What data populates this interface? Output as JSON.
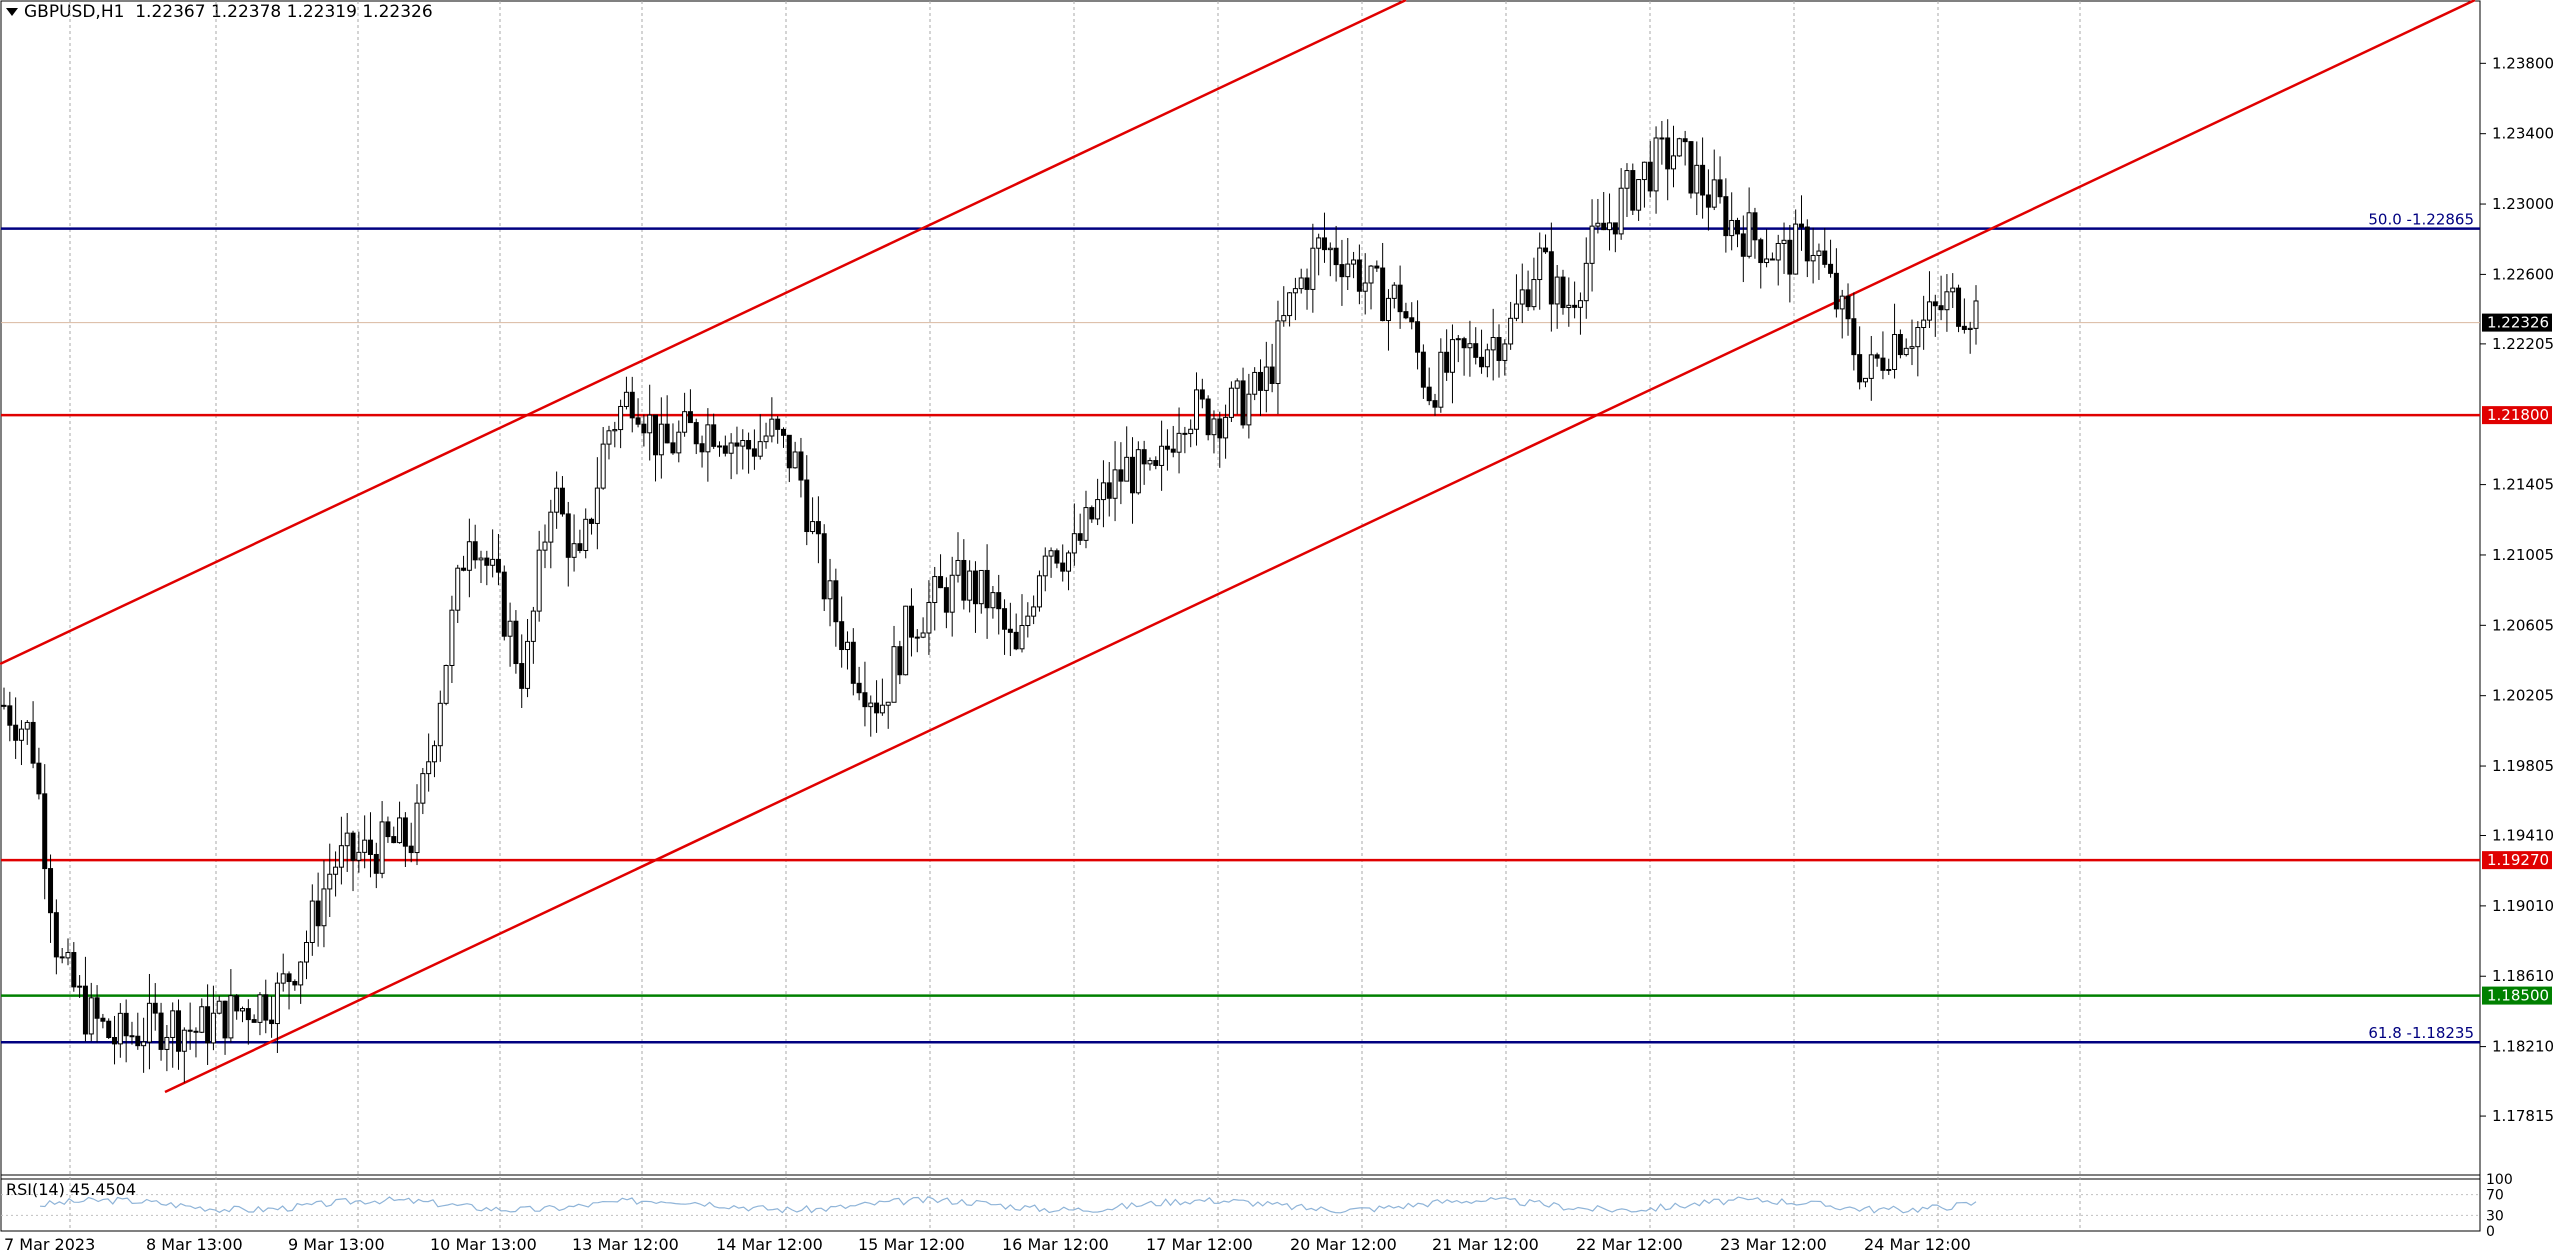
{
  "header": {
    "symbol": "GBPUSD,H1",
    "ohlc": "1.22367 1.22378 1.22319 1.22326"
  },
  "rsi": {
    "label": "RSI(14) 45.4504",
    "levels": [
      "100",
      "70",
      "30",
      "0"
    ]
  },
  "price_axis": {
    "ticks": [
      "1.23800",
      "1.23400",
      "1.23000",
      "1.22600",
      "1.22205",
      "1.21405",
      "1.21005",
      "1.20605",
      "1.20205",
      "1.19805",
      "1.19410",
      "1.19010",
      "1.18610",
      "1.18210",
      "1.17815"
    ],
    "tick_values": [
      1.238,
      1.234,
      1.23,
      1.226,
      1.22205,
      1.21405,
      1.21005,
      1.20605,
      1.20205,
      1.19805,
      1.1941,
      1.1901,
      1.1861,
      1.1821,
      1.17815
    ],
    "current_price": "1.22326",
    "current_value": 1.22326,
    "range": [
      1.1748,
      1.2416
    ]
  },
  "time_axis": {
    "labels": [
      "7 Mar 2023",
      "8 Mar 13:00",
      "9 Mar 13:00",
      "10 Mar 13:00",
      "13 Mar 12:00",
      "14 Mar 12:00",
      "15 Mar 12:00",
      "16 Mar 12:00",
      "17 Mar 12:00",
      "20 Mar 12:00",
      "21 Mar 12:00",
      "22 Mar 12:00",
      "23 Mar 12:00",
      "24 Mar 12:00"
    ]
  },
  "levels": [
    {
      "price": 1.2286,
      "color": "#000080",
      "label": "50.0 -1.22865",
      "badge": ""
    },
    {
      "price": 1.218,
      "color": "#e00000",
      "label": "",
      "badge": "1.21800"
    },
    {
      "price": 1.1927,
      "color": "#e00000",
      "label": "",
      "badge": "1.19270"
    },
    {
      "price": 1.185,
      "color": "#008000",
      "label": "",
      "badge": "1.18500"
    },
    {
      "price": 1.18235,
      "color": "#000080",
      "label": "61.8 -1.18235",
      "badge": ""
    }
  ],
  "colors": {
    "channel": "#e00000",
    "grid": "#a0a0a0",
    "candle": "#000000",
    "rsi_line": "#8fb4d8",
    "current_price_line": "#d9b8a0"
  },
  "chart_data": {
    "type": "candlestick",
    "title": "GBPUSD,H1",
    "ylim": [
      1.1748,
      1.2416
    ],
    "x": [
      "7 Mar 2023",
      "8 Mar 13:00",
      "9 Mar 13:00",
      "10 Mar 13:00",
      "13 Mar 12:00",
      "14 Mar 12:00",
      "15 Mar 12:00",
      "16 Mar 12:00",
      "17 Mar 12:00",
      "20 Mar 12:00",
      "21 Mar 12:00",
      "22 Mar 12:00",
      "23 Mar 12:00",
      "24 Mar 12:00"
    ],
    "close_path": [
      [
        0,
        1.2015
      ],
      [
        1,
        1.1998
      ],
      [
        2,
        1.187
      ],
      [
        3,
        1.184
      ],
      [
        4,
        1.1825
      ],
      [
        5,
        1.183
      ],
      [
        6,
        1.1835
      ],
      [
        7,
        1.183
      ],
      [
        8,
        1.1838
      ],
      [
        9,
        1.1845
      ],
      [
        10,
        1.185
      ],
      [
        11,
        1.188
      ],
      [
        12,
        1.1925
      ],
      [
        13,
        1.193
      ],
      [
        14,
        1.1935
      ],
      [
        15,
        1.194
      ],
      [
        16,
        1.203
      ],
      [
        17,
        1.212
      ],
      [
        18,
        1.208
      ],
      [
        19,
        1.203
      ],
      [
        20,
        1.214
      ],
      [
        21,
        1.209
      ],
      [
        22,
        1.217
      ],
      [
        23,
        1.2195
      ],
      [
        24,
        1.216
      ],
      [
        25,
        1.217
      ],
      [
        26,
        1.2175
      ],
      [
        27,
        1.216
      ],
      [
        28,
        1.217
      ],
      [
        29,
        1.215
      ],
      [
        30,
        1.208
      ],
      [
        31,
        1.204
      ],
      [
        32,
        1.2015
      ],
      [
        33,
        1.206
      ],
      [
        34,
        1.2075
      ],
      [
        35,
        1.2085
      ],
      [
        36,
        1.2075
      ],
      [
        37,
        1.204
      ],
      [
        38,
        1.211
      ],
      [
        39,
        1.21
      ],
      [
        40,
        1.213
      ],
      [
        41,
        1.215
      ],
      [
        42,
        1.214
      ],
      [
        43,
        1.2185
      ],
      [
        44,
        1.218
      ],
      [
        45,
        1.2185
      ],
      [
        46,
        1.2195
      ],
      [
        47,
        1.2245
      ],
      [
        48,
        1.2275
      ],
      [
        49,
        1.227
      ],
      [
        50,
        1.225
      ],
      [
        51,
        1.2245
      ],
      [
        52,
        1.2195
      ],
      [
        53,
        1.221
      ],
      [
        54,
        1.222
      ],
      [
        55,
        1.223
      ],
      [
        56,
        1.227
      ],
      [
        57,
        1.224
      ],
      [
        58,
        1.2275
      ],
      [
        59,
        1.23
      ],
      [
        60,
        1.232
      ],
      [
        61,
        1.233
      ],
      [
        62,
        1.231
      ],
      [
        63,
        1.229
      ],
      [
        64,
        1.228
      ],
      [
        65,
        1.227
      ],
      [
        66,
        1.228
      ],
      [
        67,
        1.224
      ],
      [
        68,
        1.22
      ],
      [
        69,
        1.2225
      ],
      [
        70,
        1.223
      ],
      [
        71,
        1.2245
      ],
      [
        72,
        1.224
      ]
    ]
  }
}
